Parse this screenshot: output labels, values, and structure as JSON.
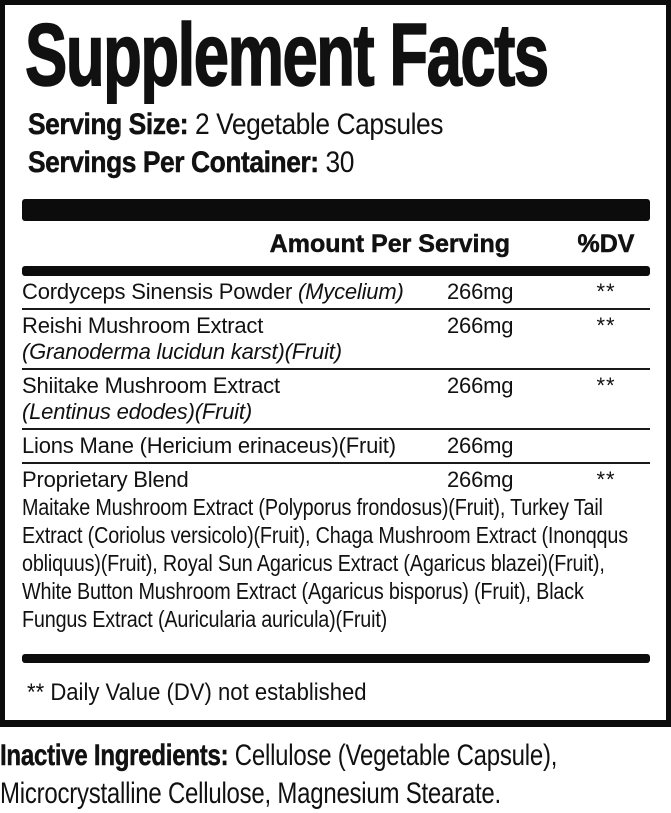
{
  "colors": {
    "ink": "#111111",
    "background": "#ffffff",
    "bar": "#0c0c0c"
  },
  "title": "Supplement Facts",
  "serving": {
    "size_label": "Serving Size:",
    "size_value": " 2 Vegetable Capsules",
    "per_container_label": "Servings Per Container:",
    "per_container_value": " 30"
  },
  "table": {
    "amount_header": "Amount Per Serving",
    "dv_header": "%DV",
    "rows": [
      {
        "name": "Cordyceps Sinensis Powder ",
        "latin": "(Mycelium)",
        "amount": "266mg",
        "dv": "**"
      },
      {
        "name": "Reishi Mushroom Extract",
        "sub": "(Granoderma lucidun karst)(Fruit)",
        "amount": "266mg",
        "dv": "**"
      },
      {
        "name": "Shiitake Mushroom Extract",
        "sub": "(Lentinus edodes)(Fruit)",
        "amount": "266mg",
        "dv": "**"
      },
      {
        "name": "Lions Mane (Hericium erinaceus)(Fruit)",
        "amount": "266mg",
        "dv": ""
      },
      {
        "name": "Proprietary Blend",
        "amount": "266mg",
        "dv": "**",
        "description": "Maitake Mushroom Extract (Polyporus frondosus)(Fruit), Turkey Tail Extract (Coriolus versicolo)(Fruit), Chaga Mushroom Extract (Inonqqus obliquus)(Fruit), Royal Sun Agaricus Extract (Agaricus blazei)(Fruit), White Button Mushroom Extract (Agaricus bisporus) (Fruit), Black Fungus Extract (Auricularia auricula)(Fruit)"
      }
    ],
    "footnote": "** Daily Value (DV) not established"
  },
  "inactive_ingredients": {
    "label": "Inactive Ingredients:",
    "value": " Cellulose (Vegetable Capsule), Microcrystalline Cellulose, Magnesium Stearate."
  }
}
